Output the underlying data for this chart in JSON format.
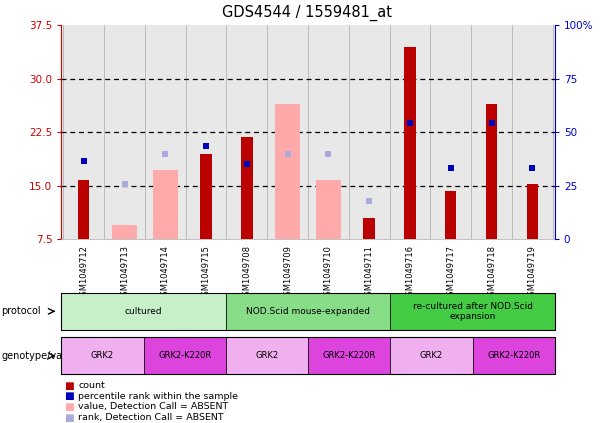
{
  "title": "GDS4544 / 1559481_at",
  "samples": [
    "GSM1049712",
    "GSM1049713",
    "GSM1049714",
    "GSM1049715",
    "GSM1049708",
    "GSM1049709",
    "GSM1049710",
    "GSM1049711",
    "GSM1049716",
    "GSM1049717",
    "GSM1049718",
    "GSM1049719"
  ],
  "red_bars": [
    15.8,
    0,
    0,
    19.5,
    21.8,
    0,
    0,
    10.5,
    34.5,
    14.2,
    26.5,
    15.2
  ],
  "pink_bars": [
    0,
    9.5,
    17.2,
    0,
    0,
    26.5,
    15.8,
    0,
    0,
    0,
    0,
    0
  ],
  "blue_sq_y": [
    18.5,
    0,
    0,
    20.5,
    18.0,
    0,
    0,
    0,
    23.8,
    17.5,
    23.8,
    17.5
  ],
  "lightblue_sq_y": [
    0,
    15.2,
    19.5,
    0,
    0,
    19.5,
    19.5,
    12.8,
    0,
    0,
    0,
    0
  ],
  "ylim_left": [
    7.5,
    37.5
  ],
  "ylim_right": [
    0,
    100
  ],
  "yticks_left": [
    7.5,
    15.0,
    22.5,
    30.0,
    37.5
  ],
  "yticks_right": [
    0,
    25,
    50,
    75,
    100
  ],
  "ytick_labels_right": [
    "0",
    "25",
    "50",
    "75",
    "100%"
  ],
  "hgrid_vals": [
    15.0,
    22.5,
    30.0
  ],
  "protocol_groups": [
    {
      "label": "cultured",
      "start": 0,
      "end": 3,
      "color": "#c8f0c8"
    },
    {
      "label": "NOD.Scid mouse-expanded",
      "start": 4,
      "end": 7,
      "color": "#88dd88"
    },
    {
      "label": "re-cultured after NOD.Scid\nexpansion",
      "start": 8,
      "end": 11,
      "color": "#44cc44"
    }
  ],
  "genotype_groups": [
    {
      "label": "GRK2",
      "start": 0,
      "end": 1,
      "color": "#f0b0f0"
    },
    {
      "label": "GRK2-K220R",
      "start": 2,
      "end": 3,
      "color": "#dd44dd"
    },
    {
      "label": "GRK2",
      "start": 4,
      "end": 5,
      "color": "#f0b0f0"
    },
    {
      "label": "GRK2-K220R",
      "start": 6,
      "end": 7,
      "color": "#dd44dd"
    },
    {
      "label": "GRK2",
      "start": 8,
      "end": 9,
      "color": "#f0b0f0"
    },
    {
      "label": "GRK2-K220R",
      "start": 10,
      "end": 11,
      "color": "#dd44dd"
    }
  ],
  "red_bar_color": "#bb0000",
  "pink_bar_color": "#ffaaaa",
  "blue_sq_color": "#0000bb",
  "lightblue_sq_color": "#aaaadd",
  "left_axis_color": "#cc0000",
  "right_axis_color": "#0000cc",
  "plot_bg": "#e8e8e8",
  "legend_items": [
    {
      "color": "#bb0000",
      "label": "count"
    },
    {
      "color": "#0000bb",
      "label": "percentile rank within the sample"
    },
    {
      "color": "#ffaaaa",
      "label": "value, Detection Call = ABSENT"
    },
    {
      "color": "#aaaadd",
      "label": "rank, Detection Call = ABSENT"
    }
  ]
}
